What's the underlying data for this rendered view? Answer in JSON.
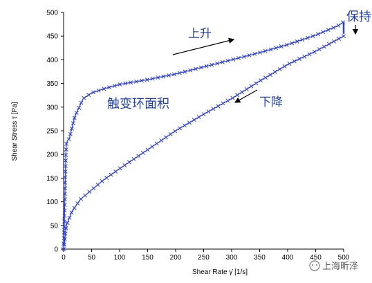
{
  "chart_data": {
    "type": "line",
    "xlabel": "Shear Rate γ̇ [1/s]",
    "ylabel": "Shear Stress τ [Pa]",
    "xlim": [
      0,
      500
    ],
    "ylim": [
      0,
      500
    ],
    "x_ticks": [
      "0",
      "50",
      "100",
      "150",
      "200",
      "250",
      "300",
      "350",
      "400",
      "450",
      "500"
    ],
    "y_ticks": [
      "0",
      "50",
      "100",
      "150",
      "200",
      "250",
      "300",
      "350",
      "400",
      "450",
      "500"
    ],
    "grid": false,
    "color": "#2b3fd9",
    "marker": "x",
    "series": [
      {
        "values": [
          [
            0,
            0
          ],
          [
            2,
            90
          ],
          [
            3,
            150
          ],
          [
            4,
            200
          ],
          [
            5,
            222
          ],
          [
            7,
            230
          ],
          [
            10,
            233
          ],
          [
            20,
            280
          ],
          [
            35,
            318
          ],
          [
            50,
            330
          ],
          [
            70,
            338
          ],
          [
            100,
            348
          ],
          [
            150,
            358
          ],
          [
            200,
            370
          ],
          [
            250,
            385
          ],
          [
            300,
            400
          ],
          [
            350,
            415
          ],
          [
            400,
            432
          ],
          [
            450,
            452
          ],
          [
            490,
            472
          ],
          [
            500,
            480
          ]
        ]
      },
      {
        "values": [
          [
            500,
            450
          ],
          [
            450,
            418
          ],
          [
            400,
            390
          ],
          [
            350,
            355
          ],
          [
            300,
            318
          ],
          [
            250,
            285
          ],
          [
            200,
            250
          ],
          [
            150,
            210
          ],
          [
            100,
            170
          ],
          [
            70,
            145
          ],
          [
            50,
            125
          ],
          [
            30,
            105
          ],
          [
            15,
            80
          ],
          [
            5,
            50
          ],
          [
            0,
            0
          ]
        ]
      },
      {
        "values": [
          [
            500,
            480
          ],
          [
            500,
            455
          ]
        ]
      }
    ],
    "annotations": {
      "up": "上升",
      "down": "下降",
      "hold": "保持",
      "area": "触变环面积"
    }
  },
  "watermark": "上海昕泽"
}
